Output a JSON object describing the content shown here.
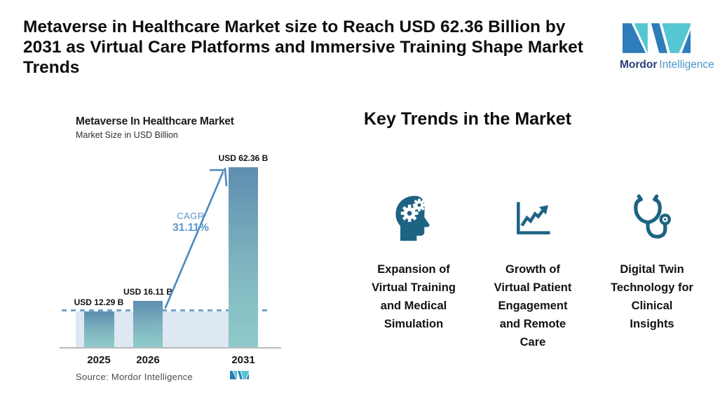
{
  "header": {
    "title": "Metaverse in Healthcare Market size to Reach USD 62.36 Billion by\n2031 as Virtual Care Platforms and Immersive Training Shape Market\nTrends",
    "logo": {
      "brand_bold": "Mordor",
      "brand_light": "Intelligence"
    }
  },
  "chart": {
    "title": "Metaverse In Healthcare Market",
    "subtitle": "Market Size in USD Billion",
    "cagr_label": "CAGR",
    "cagr_value": "31.11%",
    "source": "Source: Mordor Intelligence"
  },
  "chart_data": {
    "type": "bar",
    "title": "Metaverse In Healthcare Market",
    "subtitle": "Market Size in USD Billion",
    "categories": [
      "2025",
      "2026",
      "2031"
    ],
    "values": [
      12.29,
      16.11,
      62.36
    ],
    "value_labels": [
      "USD 12.29 B",
      "USD 16.11 B",
      "USD 62.36 B"
    ],
    "unit": "USD Billion",
    "cagr": "31.11%",
    "ylim": [
      0,
      62.36
    ],
    "grid": false,
    "annotations": [
      "CAGR 31.11% arrow from 2026 bar to 2031 bar",
      "dashed reference line with shaded band at 2025 level"
    ],
    "source": "Mordor Intelligence"
  },
  "trends": {
    "heading": "Key Trends in the Market",
    "items": [
      {
        "icon": "head-gears-icon",
        "label": "Expansion of\nVirtual Training\nand Medical\nSimulation"
      },
      {
        "icon": "growth-chart-icon",
        "label": "Growth of\nVirtual Patient\nEngagement\nand Remote\nCare"
      },
      {
        "icon": "stethoscope-icon",
        "label": "Digital Twin\nTechnology for\nClinical\nInsights"
      }
    ]
  },
  "colors": {
    "icon_teal": "#1d6383",
    "bar_gradient_top": "#5f8db1",
    "bar_gradient_bottom": "#8fcbcb",
    "band_fill": "#dde8f2",
    "dashed_line": "#76a3c8",
    "arrow_blue": "#4d87ba",
    "cagr_text": "#5996cb",
    "logo_teal": "#54c7d2",
    "logo_blue": "#2e7cb9",
    "logo_dark_text": "#2a3f77",
    "logo_light_text": "#4a97c9"
  }
}
